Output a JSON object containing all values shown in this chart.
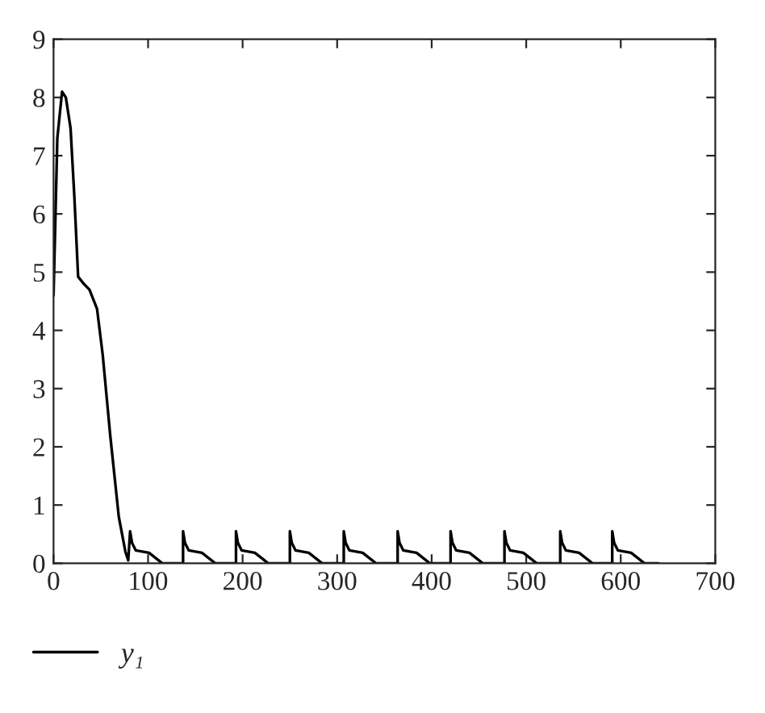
{
  "chart_data": {
    "type": "line",
    "xlim": [
      0,
      700
    ],
    "xticks": [
      0,
      100,
      200,
      300,
      400,
      500,
      600,
      700
    ],
    "ylim": [
      0,
      9
    ],
    "yticks": [
      0,
      1,
      2,
      3,
      4,
      5,
      6,
      7,
      8,
      9
    ],
    "grid": false,
    "legend": "bottom left",
    "line_style": "solid",
    "marker": "none",
    "series": [
      {
        "name": "y₁",
        "color": "#000000",
        "x": [
          0,
          4,
          9,
          13,
          18,
          22,
          26,
          32,
          38,
          46,
          52,
          60,
          69,
          76,
          79,
          81,
          83,
          87,
          101,
          115,
          137,
          137,
          139,
          143,
          157,
          171,
          193,
          193,
          195,
          199,
          213,
          227,
          250,
          250,
          252,
          256,
          270,
          284,
          307,
          307,
          309,
          313,
          327,
          341,
          364,
          364,
          366,
          370,
          384,
          398,
          420,
          420,
          422,
          426,
          440,
          454,
          477,
          477,
          479,
          483,
          497,
          511,
          536,
          536,
          538,
          542,
          556,
          570,
          591,
          591,
          593,
          597,
          611,
          625,
          640
        ],
        "values": [
          4.6,
          7.3,
          8.1,
          8.0,
          7.47,
          6.3,
          4.92,
          4.8,
          4.7,
          4.37,
          3.58,
          2.19,
          0.8,
          0.2,
          0.05,
          0.55,
          0.35,
          0.22,
          0.18,
          0,
          0,
          0.55,
          0.35,
          0.22,
          0.18,
          0,
          0,
          0.55,
          0.35,
          0.22,
          0.18,
          0,
          0,
          0.55,
          0.35,
          0.22,
          0.18,
          0,
          0,
          0.55,
          0.35,
          0.22,
          0.18,
          0,
          0,
          0.55,
          0.35,
          0.22,
          0.18,
          0,
          0,
          0.55,
          0.35,
          0.22,
          0.18,
          0,
          0,
          0.55,
          0.35,
          0.22,
          0.18,
          0,
          0,
          0.55,
          0.35,
          0.22,
          0.18,
          0,
          0,
          0.55,
          0.35,
          0.22,
          0.18,
          0,
          0
        ]
      }
    ]
  }
}
